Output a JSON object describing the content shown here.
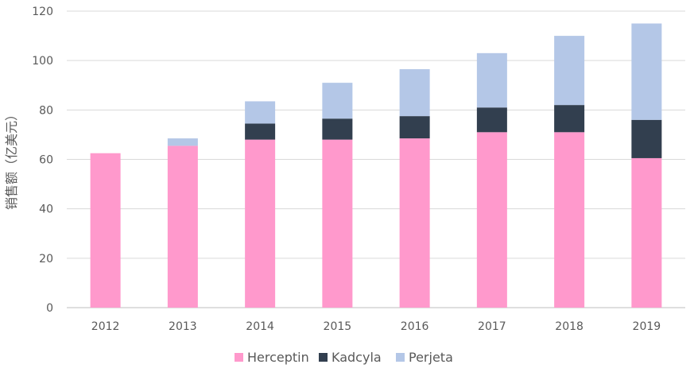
{
  "chart_data": {
    "type": "bar",
    "stacked": true,
    "title": "",
    "xlabel": "",
    "ylabel": "销售额（亿美元）",
    "ylim": [
      0,
      120
    ],
    "yticks": [
      0,
      20,
      40,
      60,
      80,
      100,
      120
    ],
    "grid": true,
    "legend_position": "bottom",
    "categories": [
      "2012",
      "2013",
      "2014",
      "2015",
      "2016",
      "2017",
      "2018",
      "2019"
    ],
    "series": [
      {
        "name": "Herceptin",
        "color": "#ff99cc",
        "values": [
          62.5,
          65.5,
          68.0,
          68.0,
          68.5,
          71.0,
          71.0,
          60.5
        ]
      },
      {
        "name": "Kadcyla",
        "color": "#323f4f",
        "values": [
          0,
          0,
          6.5,
          8.5,
          9.0,
          10.0,
          11.0,
          15.5
        ]
      },
      {
        "name": "Perjeta",
        "color": "#b4c7e7",
        "values": [
          0,
          3.0,
          9.0,
          14.5,
          19.0,
          22.0,
          28.0,
          39.0
        ]
      }
    ]
  }
}
